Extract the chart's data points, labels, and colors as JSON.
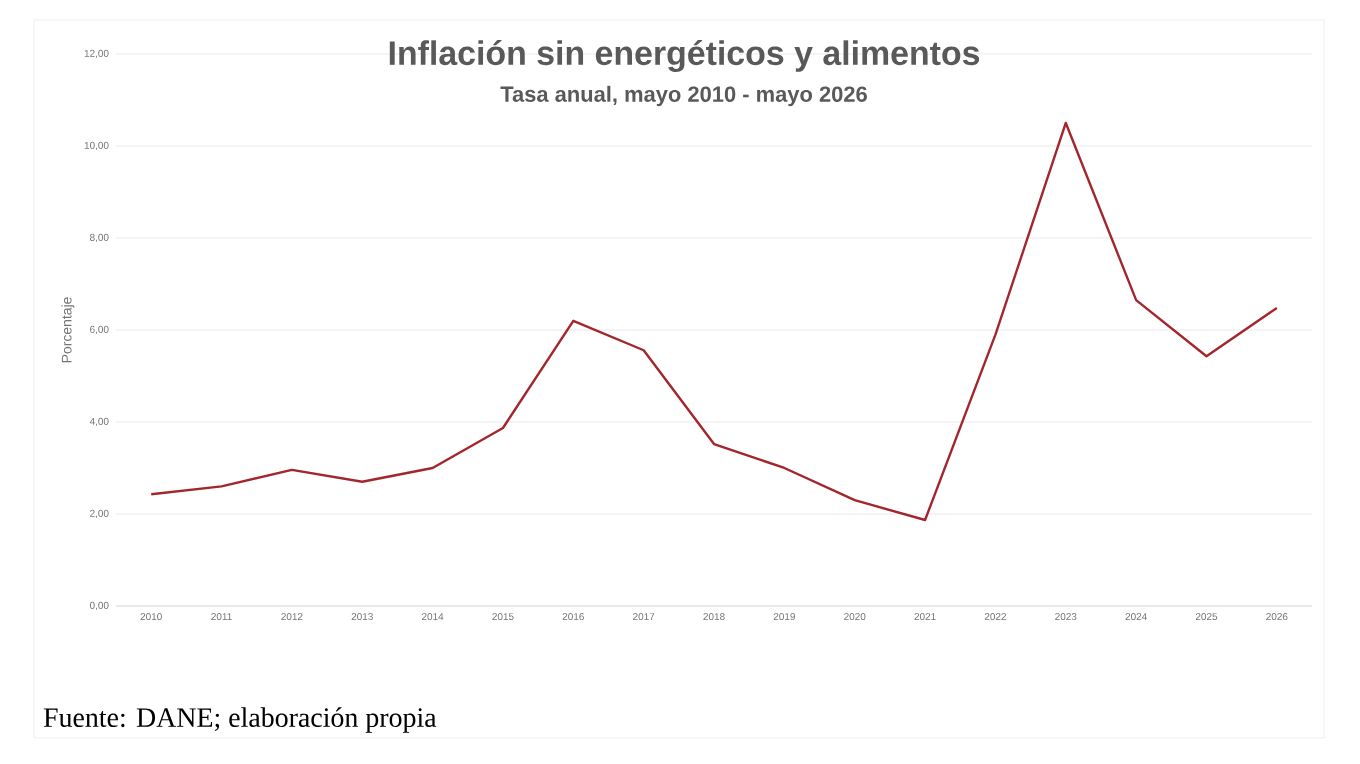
{
  "chart_data": {
    "type": "line",
    "title": "Inflación sin energéticos y alimentos",
    "subtitle": "Tasa anual, mayo 2010 - mayo 2026",
    "ylabel": "Porcentaje",
    "categories": [
      "2010",
      "2011",
      "2012",
      "2013",
      "2014",
      "2015",
      "2016",
      "2017",
      "2018",
      "2019",
      "2020",
      "2021",
      "2022",
      "2023",
      "2024",
      "2025",
      "2026"
    ],
    "series": [
      {
        "color": "#a3262c",
        "values": [
          2.43,
          2.6,
          2.96,
          2.7,
          3.0,
          3.87,
          6.2,
          5.56,
          3.52,
          3.0,
          2.3,
          1.87,
          5.9,
          10.5,
          6.65,
          5.43,
          6.48
        ]
      }
    ],
    "ylim": [
      0,
      12
    ],
    "yticks": [
      {
        "value": 0,
        "label": "0,00"
      },
      {
        "value": 2,
        "label": "2,00"
      },
      {
        "value": 4,
        "label": "4,00"
      },
      {
        "value": 6,
        "label": "6,00"
      },
      {
        "value": 8,
        "label": "8,00"
      },
      {
        "value": 10,
        "label": "10,00"
      },
      {
        "value": 12,
        "label": "12,00"
      }
    ],
    "grid": "y",
    "marker": "none",
    "line_style": "solid",
    "annotations": [
      "Fuente: DANE; elaboración propia"
    ]
  }
}
